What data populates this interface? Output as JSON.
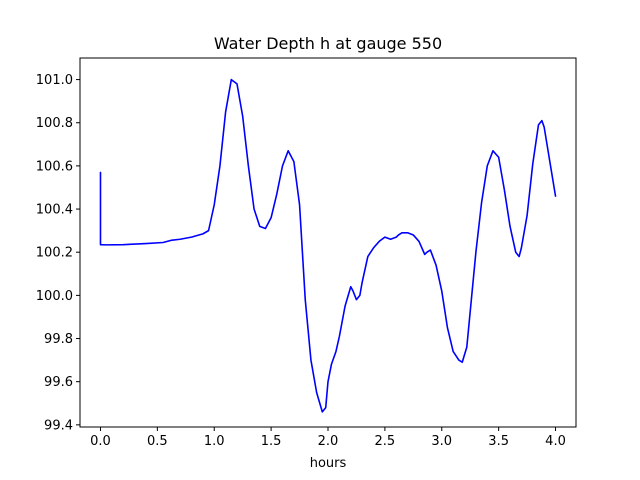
{
  "chart_data": {
    "type": "line",
    "title": "Water Depth h at gauge 550",
    "xlabel": "hours",
    "ylabel": "",
    "xlim": [
      -0.18,
      4.18
    ],
    "ylim": [
      99.39,
      101.1
    ],
    "grid": false,
    "line_color": "#0000ff",
    "x_ticks": [
      {
        "value": 0.0,
        "label": "0.0"
      },
      {
        "value": 0.5,
        "label": "0.5"
      },
      {
        "value": 1.0,
        "label": "1.0"
      },
      {
        "value": 1.5,
        "label": "1.5"
      },
      {
        "value": 2.0,
        "label": "2.0"
      },
      {
        "value": 2.5,
        "label": "2.5"
      },
      {
        "value": 3.0,
        "label": "3.0"
      },
      {
        "value": 3.5,
        "label": "3.5"
      },
      {
        "value": 4.0,
        "label": "4.0"
      }
    ],
    "y_ticks": [
      {
        "value": 99.4,
        "label": "99.4"
      },
      {
        "value": 99.6,
        "label": "99.6"
      },
      {
        "value": 99.8,
        "label": "99.8"
      },
      {
        "value": 100.0,
        "label": "100.0"
      },
      {
        "value": 100.2,
        "label": "100.2"
      },
      {
        "value": 100.4,
        "label": "100.4"
      },
      {
        "value": 100.6,
        "label": "100.6"
      },
      {
        "value": 100.8,
        "label": "100.8"
      },
      {
        "value": 101.0,
        "label": "101.0"
      }
    ],
    "series": [
      {
        "x": [
          0.0,
          0.0,
          0.05,
          0.2,
          0.4,
          0.55,
          0.62,
          0.7,
          0.8,
          0.9,
          0.95,
          1.0,
          1.05,
          1.1,
          1.15,
          1.2,
          1.25,
          1.3,
          1.35,
          1.4,
          1.45,
          1.5,
          1.55,
          1.6,
          1.65,
          1.7,
          1.75,
          1.8,
          1.85,
          1.9,
          1.95,
          1.98,
          2.0,
          2.03,
          2.07,
          2.1,
          2.15,
          2.2,
          2.22,
          2.25,
          2.28,
          2.3,
          2.35,
          2.4,
          2.45,
          2.5,
          2.55,
          2.6,
          2.62,
          2.65,
          2.7,
          2.75,
          2.8,
          2.85,
          2.87,
          2.9,
          2.95,
          3.0,
          3.05,
          3.1,
          3.15,
          3.18,
          3.22,
          3.3,
          3.35,
          3.4,
          3.45,
          3.5,
          3.55,
          3.6,
          3.65,
          3.68,
          3.7,
          3.75,
          3.8,
          3.85,
          3.88,
          3.9,
          3.95,
          4.0
        ],
        "values": [
          100.57,
          100.235,
          100.234,
          100.235,
          100.24,
          100.245,
          100.255,
          100.26,
          100.27,
          100.285,
          100.3,
          100.42,
          100.6,
          100.85,
          101.0,
          100.98,
          100.83,
          100.6,
          100.4,
          100.32,
          100.31,
          100.36,
          100.47,
          100.6,
          100.67,
          100.62,
          100.42,
          99.98,
          99.7,
          99.55,
          99.46,
          99.48,
          99.6,
          99.68,
          99.74,
          99.81,
          99.95,
          100.04,
          100.02,
          99.98,
          100.0,
          100.06,
          100.18,
          100.22,
          100.25,
          100.27,
          100.26,
          100.27,
          100.28,
          100.29,
          100.29,
          100.28,
          100.25,
          100.19,
          100.2,
          100.21,
          100.14,
          100.02,
          99.85,
          99.74,
          99.7,
          99.69,
          99.76,
          100.2,
          100.43,
          100.6,
          100.67,
          100.64,
          100.49,
          100.32,
          100.2,
          100.18,
          100.22,
          100.37,
          100.61,
          100.79,
          100.81,
          100.78,
          100.62,
          100.46
        ]
      }
    ]
  }
}
